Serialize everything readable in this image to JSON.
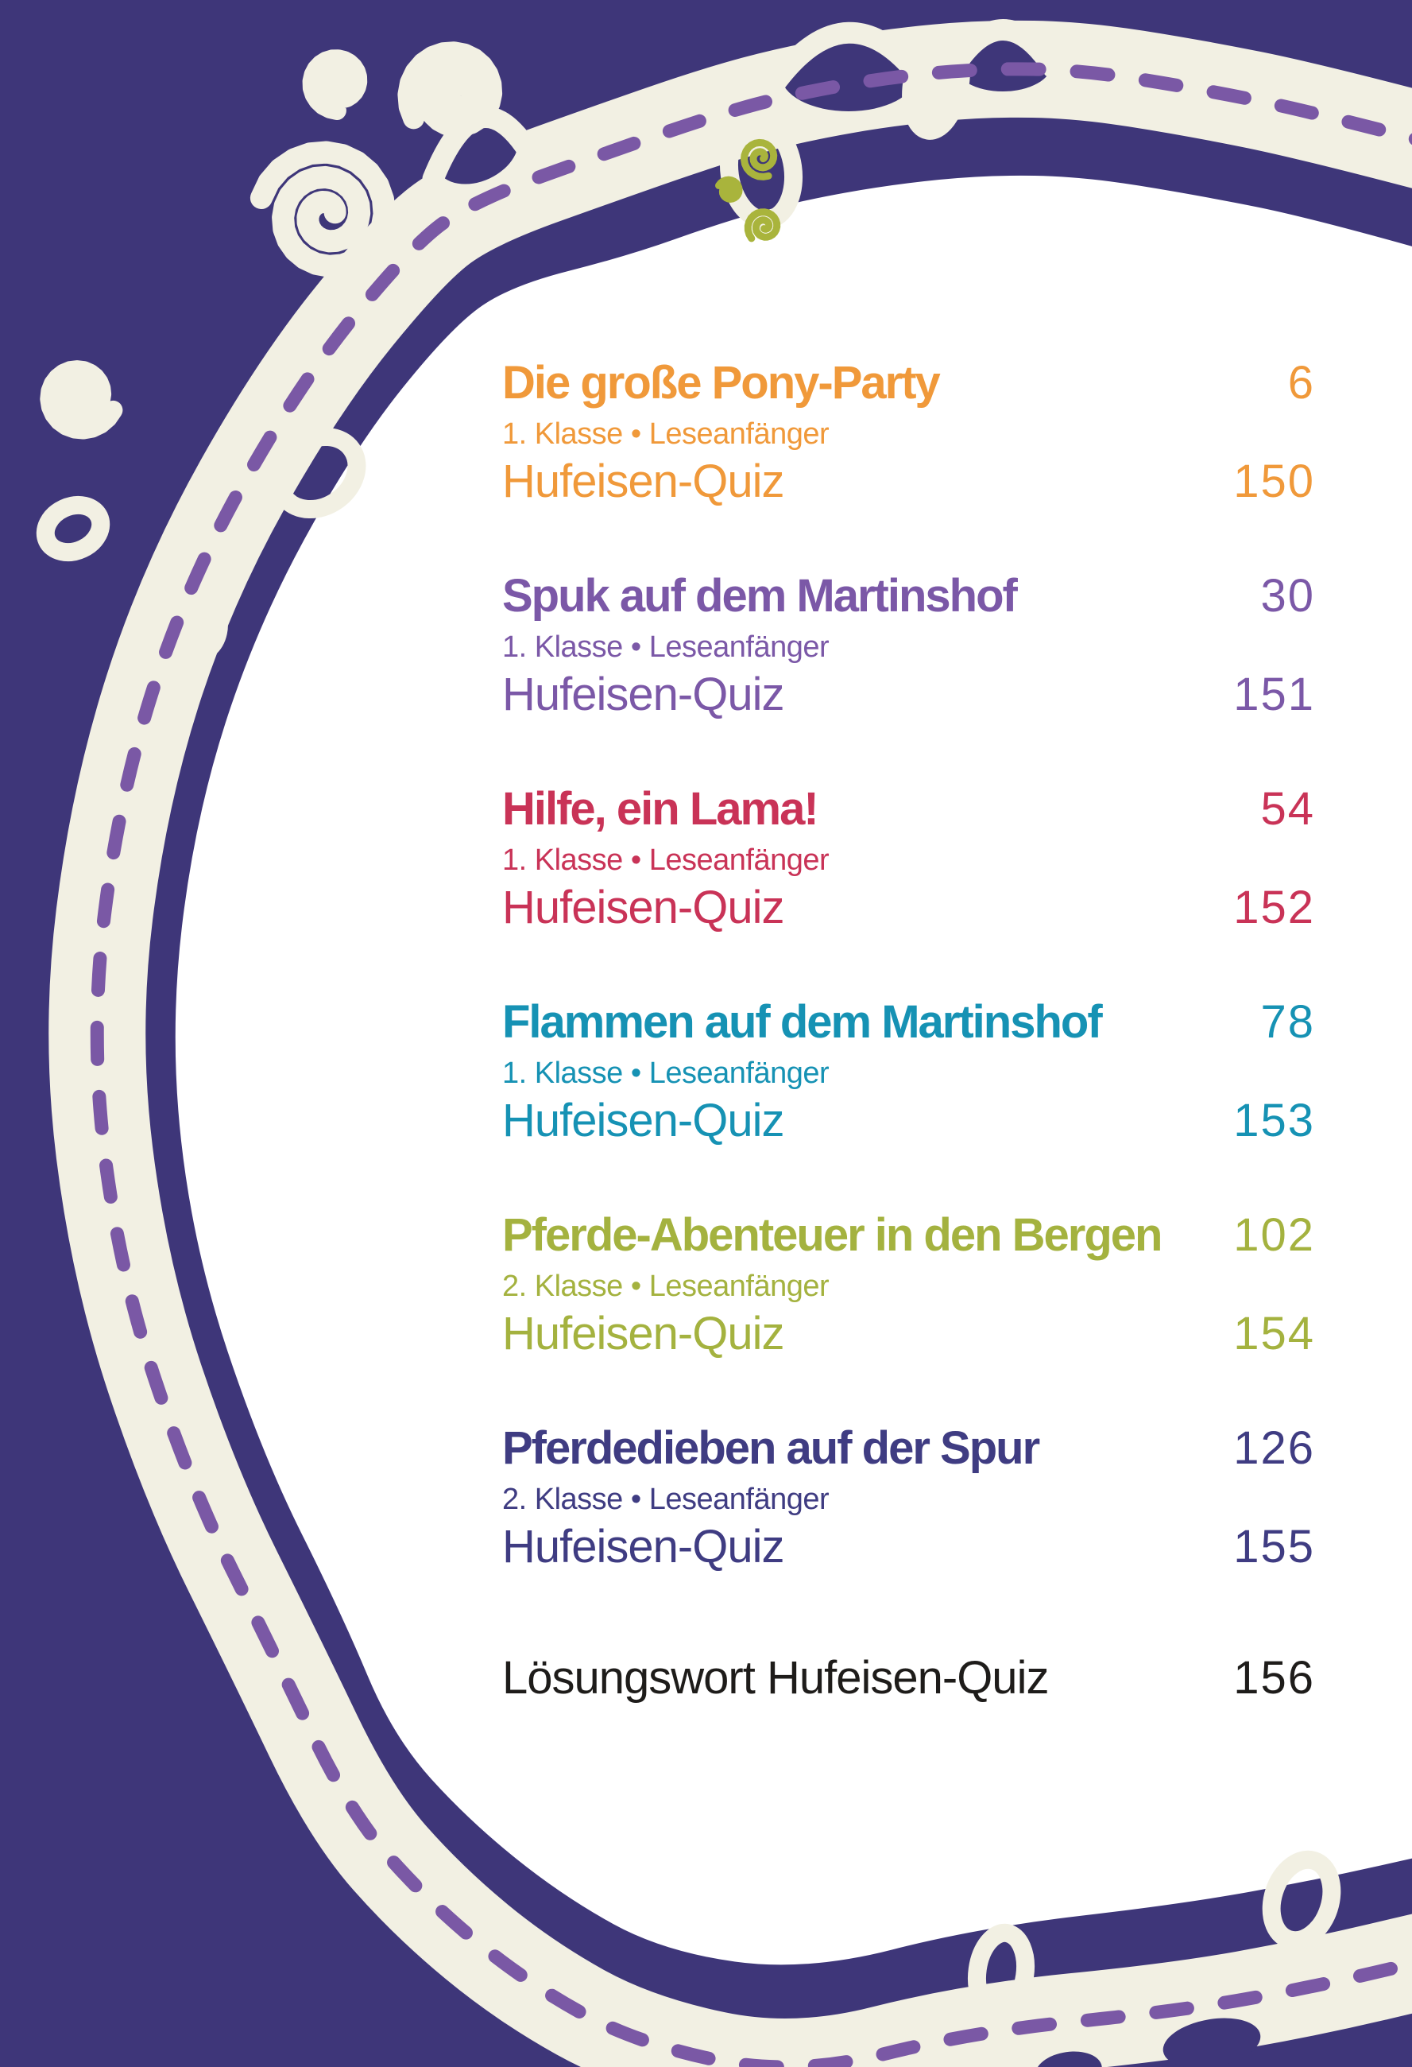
{
  "page": {
    "background_color": "#3e3679",
    "ring_color": "#f2f0e3",
    "dash_color": "#7a58a5",
    "paper_color": "#ffffff",
    "ornament_color": "#a9b43c"
  },
  "toc": {
    "entries": [
      {
        "title": "Die große Pony-Party",
        "page": "6",
        "subtitle": "1. Klasse • Leseanfänger",
        "quiz_label": "Hufeisen-Quiz",
        "quiz_page": "150",
        "color": "#f0993a"
      },
      {
        "title": "Spuk auf dem Martinshof",
        "page": "30",
        "subtitle": "1. Klasse • Leseanfänger",
        "quiz_label": "Hufeisen-Quiz",
        "quiz_page": "151",
        "color": "#7b58a7"
      },
      {
        "title": "Hilfe, ein Lama!",
        "page": "54",
        "subtitle": "1. Klasse • Leseanfänger",
        "quiz_label": "Hufeisen-Quiz",
        "quiz_page": "152",
        "color": "#c93357"
      },
      {
        "title": "Flammen auf dem Martinshof",
        "page": "78",
        "subtitle": "1. Klasse • Leseanfänger",
        "quiz_label": "Hufeisen-Quiz",
        "quiz_page": "153",
        "color": "#1692b4"
      },
      {
        "title": "Pferde-Abenteuer in den Bergen",
        "page": "102",
        "subtitle": "2. Klasse • Leseanfänger",
        "quiz_label": "Hufeisen-Quiz",
        "quiz_page": "154",
        "color": "#a4b23f"
      },
      {
        "title": "Pferdedieben auf der Spur",
        "page": "126",
        "subtitle": "2. Klasse • Leseanfänger",
        "quiz_label": "Hufeisen-Quiz",
        "quiz_page": "155",
        "color": "#3f3c82"
      }
    ],
    "footer": {
      "label": "Lösungswort Hufeisen-Quiz",
      "page": "156",
      "color": "#1e1c1a"
    }
  }
}
